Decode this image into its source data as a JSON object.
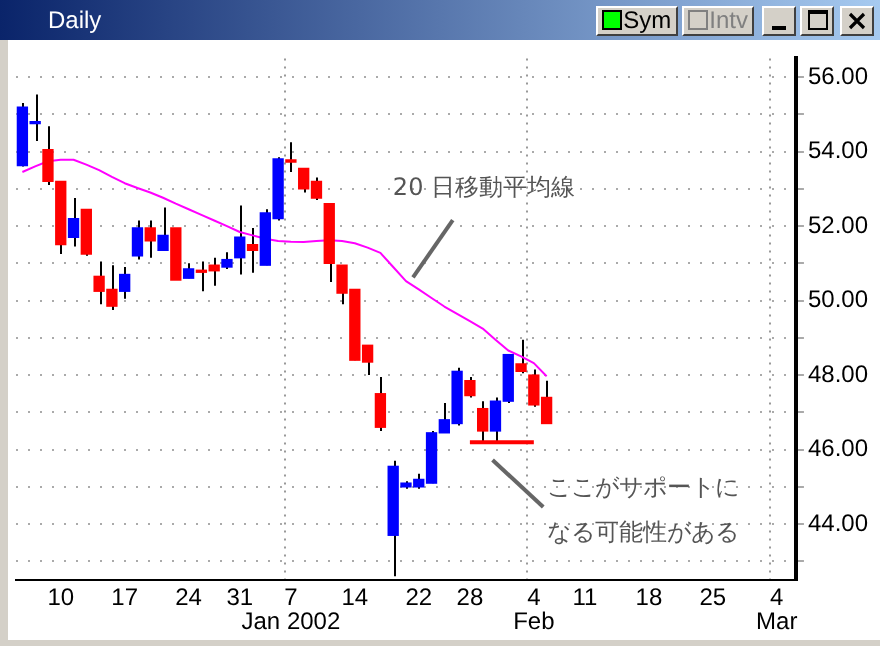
{
  "chart_data": {
    "type": "candlestick",
    "title": "Daily",
    "categories": [
      null,
      null,
      null,
      "10",
      null,
      null,
      null,
      null,
      "17",
      null,
      null,
      null,
      null,
      "24",
      null,
      null,
      null,
      "31",
      null,
      null,
      null,
      "7\nJan 2002",
      null,
      null,
      null,
      null,
      "14",
      null,
      null,
      null,
      null,
      "22",
      null,
      null,
      null,
      "28",
      null,
      null,
      null,
      null,
      "4\nFeb",
      null,
      null,
      null,
      "11",
      null,
      null,
      null,
      null,
      "18",
      null,
      null,
      null,
      null,
      "25",
      null,
      null,
      null,
      null,
      "4\nMar",
      null
    ],
    "series": [
      {
        "type": "candlestick",
        "ohlc": [
          [
            53.62,
            55.3,
            53.6,
            55.19
          ],
          [
            54.75,
            55.53,
            54.28,
            54.8
          ],
          [
            54.05,
            54.68,
            53.1,
            53.2
          ],
          [
            53.2,
            53.2,
            51.25,
            51.5
          ],
          [
            51.7,
            52.75,
            51.45,
            52.2
          ],
          [
            52.45,
            52.45,
            51.2,
            51.25
          ],
          [
            50.65,
            51.05,
            49.9,
            50.25
          ],
          [
            50.3,
            50.95,
            49.75,
            49.85
          ],
          [
            50.25,
            50.9,
            50.05,
            50.7
          ],
          [
            51.2,
            52.15,
            51.1,
            51.95
          ],
          [
            51.95,
            52.15,
            51.15,
            51.6
          ],
          [
            51.35,
            52.5,
            51.35,
            51.75
          ],
          [
            51.95,
            51.95,
            50.55,
            50.55
          ],
          [
            50.6,
            51.0,
            50.6,
            50.85
          ],
          [
            50.8,
            51.05,
            50.25,
            50.76
          ],
          [
            50.95,
            51.15,
            50.4,
            50.8
          ],
          [
            50.9,
            51.3,
            50.85,
            51.1
          ],
          [
            51.15,
            52.55,
            50.7,
            51.7
          ],
          [
            51.5,
            51.95,
            50.75,
            51.35
          ],
          [
            50.95,
            52.45,
            50.95,
            52.35
          ],
          [
            52.2,
            53.85,
            52.15,
            53.8
          ],
          [
            53.75,
            54.25,
            53.45,
            53.72
          ],
          [
            53.55,
            53.55,
            52.9,
            53.0
          ],
          [
            53.2,
            53.3,
            52.7,
            52.75
          ],
          [
            52.6,
            52.6,
            50.5,
            51.0
          ],
          [
            50.95,
            50.95,
            49.9,
            50.2
          ],
          [
            50.3,
            50.3,
            48.4,
            48.4
          ],
          [
            48.8,
            48.8,
            48.0,
            48.35
          ],
          [
            47.5,
            47.95,
            46.5,
            46.6
          ],
          [
            43.7,
            45.7,
            42.6,
            45.55
          ],
          [
            45.0,
            45.15,
            44.95,
            45.1
          ],
          [
            45.0,
            45.35,
            44.95,
            45.2
          ],
          [
            45.1,
            46.5,
            45.1,
            46.45
          ],
          [
            46.45,
            47.25,
            46.45,
            46.8
          ],
          [
            46.7,
            48.2,
            46.65,
            48.1
          ],
          [
            47.85,
            47.95,
            47.4,
            47.45
          ],
          [
            47.1,
            47.3,
            46.2,
            46.5
          ],
          [
            46.5,
            47.4,
            46.2,
            47.3
          ],
          [
            47.3,
            48.55,
            47.25,
            48.55
          ],
          [
            48.3,
            48.95,
            48.05,
            48.1
          ],
          [
            48.0,
            48.15,
            47.15,
            47.2
          ],
          [
            47.4,
            47.85,
            46.7,
            46.7
          ],
          null,
          null,
          null,
          null,
          null,
          null,
          null,
          null,
          null,
          null,
          null,
          null,
          null,
          null,
          null,
          null,
          null,
          null,
          null
        ],
        "colors": [
          "#0000ff",
          "#0000ff",
          "#ff0000",
          "#ff0000",
          "#0000ff",
          "#ff0000",
          "#ff0000",
          "#ff0000",
          "#0000ff",
          "#0000ff",
          "#ff0000",
          "#0000ff",
          "#ff0000",
          "#0000ff",
          "#ff0000",
          "#ff0000",
          "#0000ff",
          "#0000ff",
          "#ff0000",
          "#0000ff",
          "#0000ff",
          "#ff0000",
          "#ff0000",
          "#ff0000",
          "#ff0000",
          "#ff0000",
          "#ff0000",
          "#ff0000",
          "#ff0000",
          "#0000ff",
          "#0000ff",
          "#0000ff",
          "#0000ff",
          "#0000ff",
          "#0000ff",
          "#ff0000",
          "#ff0000",
          "#0000ff",
          "#0000ff",
          "#ff0000",
          "#ff0000",
          "#ff0000",
          null,
          null,
          null,
          null,
          null,
          null,
          null,
          null,
          null,
          null,
          null,
          null,
          null,
          null,
          null,
          null,
          null,
          null,
          null
        ]
      },
      {
        "type": "line",
        "name": "20 日移動平均線",
        "color": "#ff00ff",
        "values": [
          53.45,
          53.6,
          53.74,
          53.78,
          53.78,
          53.65,
          53.5,
          53.32,
          53.15,
          53.02,
          52.9,
          52.76,
          52.6,
          52.45,
          52.3,
          52.15,
          52.0,
          51.84,
          51.75,
          51.66,
          51.6,
          51.58,
          51.57,
          51.6,
          51.62,
          51.6,
          51.54,
          51.42,
          51.28,
          50.9,
          50.52,
          50.3,
          50.07,
          49.84,
          49.64,
          49.45,
          49.25,
          48.95,
          48.66,
          48.5,
          48.32,
          47.97,
          null,
          null,
          null,
          null,
          null,
          null,
          null,
          null,
          null,
          null,
          null,
          null,
          null,
          null,
          null,
          null,
          null,
          null,
          null
        ]
      },
      {
        "type": "line",
        "color": "#ff0000",
        "values": [
          null,
          null,
          null,
          null,
          null,
          null,
          null,
          null,
          null,
          null,
          null,
          null,
          null,
          null,
          null,
          null,
          null,
          null,
          null,
          null,
          null,
          null,
          null,
          null,
          null,
          null,
          null,
          null,
          null,
          null,
          null,
          null,
          null,
          null,
          null,
          46.2,
          46.2,
          46.2,
          46.2,
          46.2,
          46.2,
          null,
          null,
          null,
          null,
          null,
          null,
          null,
          null,
          null,
          null,
          null,
          null,
          null,
          null,
          null,
          null,
          null,
          null,
          null,
          null
        ]
      }
    ],
    "annotations": [
      "ここがサポートになる可能性がある",
      "Sym",
      "Intv"
    ],
    "ylim": [
      42.5,
      56.5
    ],
    "yticks": [
      {
        "value": 43,
        "label": null
      },
      {
        "value": 44,
        "label": "44.00"
      },
      {
        "value": 45,
        "label": null
      },
      {
        "value": 46,
        "label": "46.00"
      },
      {
        "value": 47,
        "label": null
      },
      {
        "value": 48,
        "label": "48.00"
      },
      {
        "value": 49,
        "label": null
      },
      {
        "value": 50,
        "label": "50.00"
      },
      {
        "value": 51,
        "label": null
      },
      {
        "value": 52,
        "label": "52.00"
      },
      {
        "value": 53,
        "label": null
      },
      {
        "value": 54,
        "label": "54.00"
      },
      {
        "value": 55,
        "label": null
      },
      {
        "value": 56,
        "label": "56.00"
      }
    ],
    "grid": true,
    "legend": false
  }
}
